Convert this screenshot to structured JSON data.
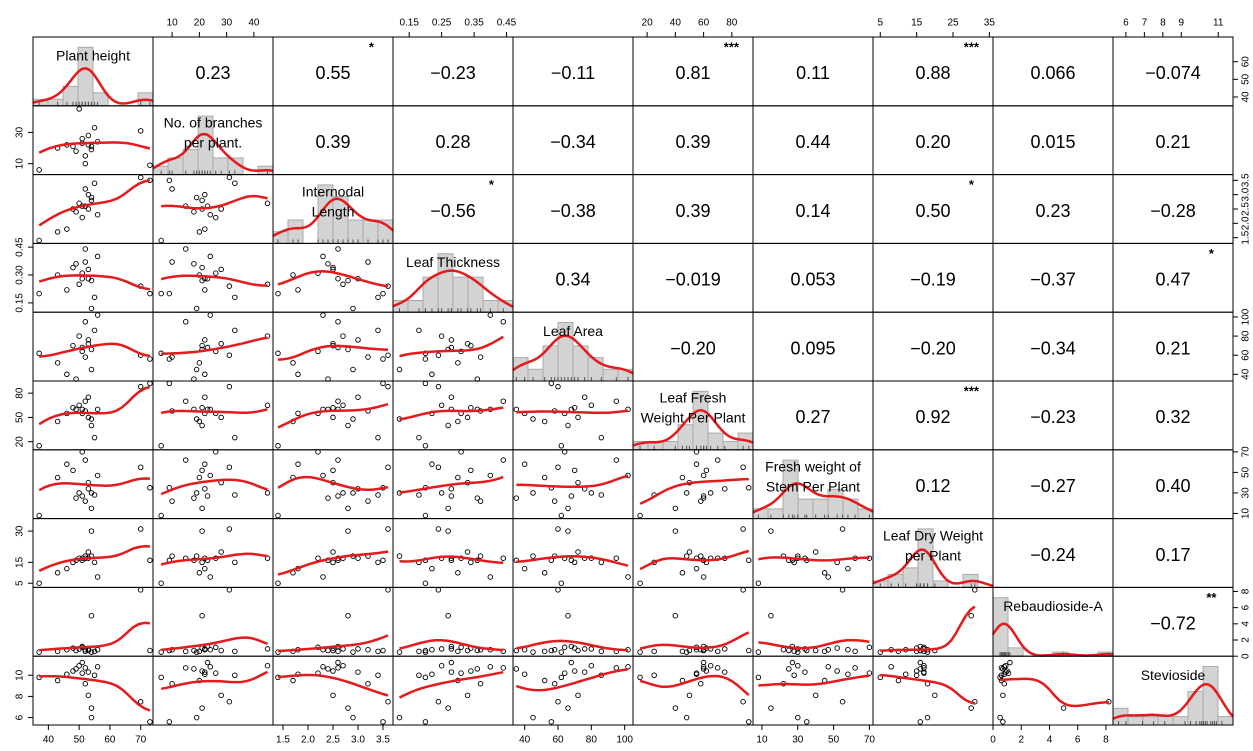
{
  "chart_data": {
    "type": "scatter-matrix",
    "variables": [
      {
        "name": [
          "Plant height"
        ],
        "lim": [
          35,
          74
        ],
        "ticks_h": [
          40,
          50,
          60,
          70
        ],
        "ticks_v": [
          40,
          50,
          60
        ],
        "values": [
          37,
          43,
          46,
          48,
          49,
          50,
          51,
          52,
          52,
          53,
          53,
          54,
          54,
          55,
          56,
          70,
          73,
          51
        ]
      },
      {
        "name": [
          "No. of branches",
          "per plant."
        ],
        "lim": [
          3,
          47
        ],
        "ticks_h": [
          10,
          20,
          30,
          40
        ],
        "ticks_v": [
          10,
          30
        ],
        "values": [
          6,
          20,
          22,
          21,
          18,
          45,
          23,
          15,
          10,
          28,
          22,
          19,
          21,
          33,
          24,
          31,
          9,
          26
        ]
      },
      {
        "name": [
          "Internodal",
          "Length"
        ],
        "lim": [
          1.3,
          3.7
        ],
        "ticks_h": [
          1.5,
          {
            "value": 2,
            "label": "2.0"
          },
          2.5,
          {
            "value": 3,
            "label": "3.0"
          },
          3.5
        ],
        "ticks_v": [
          1.5,
          {
            "value": 2,
            "label": "2.0"
          },
          2.5,
          {
            "value": 3,
            "label": "3.0"
          },
          3.5
        ],
        "values": [
          1.4,
          1.7,
          1.8,
          2.5,
          2.4,
          2.7,
          2.6,
          2.6,
          3.2,
          2.5,
          3.0,
          2.9,
          2.8,
          3.4,
          2.3,
          3.6,
          3.5,
          2.2
        ]
      },
      {
        "name": [
          "Leaf Thickness"
        ],
        "lim": [
          0.1,
          0.47
        ],
        "ticks_h": [
          0.15,
          0.25,
          0.35,
          0.45
        ],
        "ticks_v": [
          0.15,
          {
            "value": 0.3,
            "label": "0.30"
          },
          0.45
        ],
        "values": [
          0.2,
          0.3,
          0.22,
          0.34,
          0.36,
          0.25,
          0.28,
          0.44,
          0.37,
          0.33,
          0.28,
          0.12,
          0.27,
          0.18,
          0.4,
          0.24,
          0.2,
          0.31
        ]
      },
      {
        "name": [
          "Leaf Area"
        ],
        "lim": [
          33,
          105
        ],
        "ticks_h": [
          40,
          60,
          80,
          100
        ],
        "ticks_v": [
          40,
          60,
          80,
          100
        ],
        "values": [
          62,
          52,
          40,
          70,
          35,
          80,
          68,
          95,
          58,
          72,
          76,
          45,
          66,
          86,
          102,
          60,
          56,
          64
        ]
      },
      {
        "name": [
          "Leaf Fresh",
          "Weight Per Plant"
        ],
        "lim": [
          10,
          95
        ],
        "ticks_h": [
          20,
          40,
          60,
          80
        ],
        "ticks_v": [
          20,
          50,
          80
        ],
        "values": [
          15,
          45,
          55,
          62,
          60,
          65,
          60,
          70,
          58,
          50,
          75,
          48,
          40,
          25,
          60,
          88,
          92,
          55
        ]
      },
      {
        "name": [
          "Fresh weight of",
          "Stem Per Plant"
        ],
        "lim": [
          5,
          72
        ],
        "ticks_h": [
          10,
          30,
          50,
          70
        ],
        "ticks_v": [
          10,
          30,
          50,
          70
        ],
        "values": [
          8,
          45,
          58,
          52,
          25,
          30,
          27,
          62,
          22,
          40,
          34,
          30,
          15,
          28,
          47,
          55,
          35,
          70
        ]
      },
      {
        "name": [
          "Leaf Dry Weight",
          "per Plant"
        ],
        "lim": [
          3,
          36
        ],
        "ticks_h": [
          5,
          15,
          25,
          35
        ],
        "ticks_v": [
          5,
          15,
          30
        ],
        "values": [
          5,
          10,
          12,
          15,
          16,
          17,
          16,
          17,
          18,
          20,
          17,
          18,
          30,
          15,
          8,
          31,
          16,
          17
        ]
      },
      {
        "name": [
          "Rebaudioside-A"
        ],
        "lim": [
          0,
          8.5
        ],
        "ticks_h": [
          0,
          2,
          4,
          6,
          8
        ],
        "ticks_v": [
          0,
          2,
          4,
          6,
          8
        ],
        "values": [
          0.5,
          0.6,
          0.8,
          1.0,
          0.7,
          0.9,
          1.2,
          0.6,
          0.8,
          0.7,
          0.9,
          0.5,
          5.0,
          0.6,
          0.8,
          8.2,
          0.7,
          1.1
        ]
      },
      {
        "name": [
          "Stevioside"
        ],
        "lim": [
          5.3,
          11.8
        ],
        "ticks_h": [
          6,
          7,
          8,
          9,
          11
        ],
        "ticks_v": [
          6,
          8,
          10
        ],
        "values": [
          9.8,
          9.5,
          10.1,
          10.4,
          10.6,
          10.9,
          11.2,
          10.7,
          9.2,
          8.1,
          10.3,
          6.0,
          6.9,
          10.0,
          10.8,
          7.5,
          5.6,
          10.2
        ]
      }
    ],
    "correlations": [
      [
        0.23,
        0.55,
        -0.23,
        -0.11,
        0.81,
        0.11,
        0.88,
        0.066,
        -0.074
      ],
      [
        0.39,
        0.28,
        -0.34,
        0.39,
        0.44,
        0.2,
        0.015,
        0.21
      ],
      [
        -0.56,
        -0.38,
        0.39,
        0.14,
        0.5,
        0.23,
        -0.28
      ],
      [
        0.34,
        -0.019,
        0.053,
        -0.19,
        -0.37,
        0.47
      ],
      [
        -0.2,
        0.095,
        -0.2,
        -0.34,
        0.21
      ],
      [
        0.27,
        0.92,
        -0.23,
        0.32
      ],
      [
        0.12,
        -0.27,
        0.4
      ],
      [
        -0.24,
        0.17
      ],
      [
        -0.72
      ]
    ],
    "correlation_labels": [
      [
        "0.23",
        "0.55",
        "−0.23",
        "−0.11",
        "0.81",
        "0.11",
        "0.88",
        "0.066",
        "−0.074"
      ],
      [
        "0.39",
        "0.28",
        "−0.34",
        "0.39",
        "0.44",
        "0.20",
        "0.015",
        "0.21"
      ],
      [
        "−0.56",
        "−0.38",
        "0.39",
        "0.14",
        "0.50",
        "0.23",
        "−0.28"
      ],
      [
        "0.34",
        "−0.019",
        "0.053",
        "−0.19",
        "−0.37",
        "0.47"
      ],
      [
        "−0.20",
        "0.095",
        "−0.20",
        "−0.34",
        "0.21"
      ],
      [
        "0.27",
        "0.92",
        "−0.23",
        "0.32"
      ],
      [
        "0.12",
        "−0.27",
        "0.40"
      ],
      [
        "−0.24",
        "0.17"
      ],
      [
        "−0.72"
      ]
    ],
    "significance": [
      [
        null,
        "*",
        null,
        null,
        "***",
        null,
        "***",
        null,
        null
      ],
      [
        null,
        null,
        null,
        null,
        null,
        null,
        null,
        null
      ],
      [
        "*",
        null,
        null,
        null,
        "*",
        null,
        null
      ],
      [
        null,
        null,
        null,
        null,
        null,
        "*"
      ],
      [
        null,
        null,
        null,
        null,
        null
      ],
      [
        null,
        "***",
        null,
        null
      ],
      [
        null,
        null,
        null
      ],
      [
        null,
        null
      ],
      [
        "**"
      ]
    ],
    "smooth_color": "#e41a1c",
    "hist_color": "#d3d3d3"
  }
}
